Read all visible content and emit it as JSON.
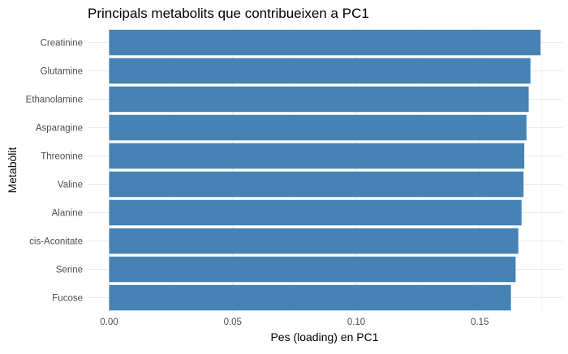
{
  "chart_data": {
    "type": "bar",
    "orientation": "horizontal",
    "title": "Principals metabolits que contribueixen a PC1",
    "xlabel": "Pes (loading) en PC1",
    "ylabel": "Metabòlit",
    "categories": [
      "Creatinine",
      "Glutamine",
      "Ethanolamine",
      "Asparagine",
      "Threonine",
      "Valine",
      "Alanine",
      "cis-Aconitate",
      "Serine",
      "Fucose"
    ],
    "values": [
      0.1746,
      0.1705,
      0.1698,
      0.1689,
      0.168,
      0.1677,
      0.1669,
      0.1656,
      0.1645,
      0.1626
    ],
    "xlim": [
      -0.0087,
      0.1834
    ],
    "xticks": [
      0.0,
      0.05,
      0.1,
      0.15
    ],
    "xtick_labels": [
      "0.00",
      "0.05",
      "0.10",
      "0.15"
    ],
    "bar_color": "#4682B4",
    "grid": true,
    "legend": "none"
  }
}
